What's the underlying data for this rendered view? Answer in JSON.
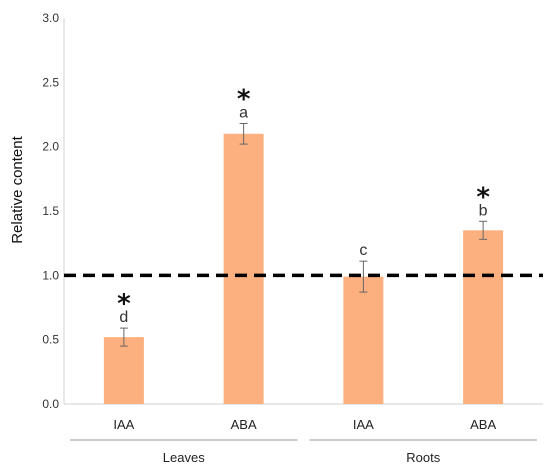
{
  "chart_data": {
    "type": "bar",
    "ylabel": "Relative content",
    "ylim": [
      0,
      3.0
    ],
    "yticks": [
      "0.0",
      "0.5",
      "1.0",
      "1.5",
      "2.0",
      "2.5",
      "3.0"
    ],
    "reference_line": 1.0,
    "bar_color": "#fdb07f",
    "bars": [
      {
        "category": "IAA",
        "group": "Leaves",
        "value": 0.52,
        "error": 0.07,
        "letter": "d",
        "star": "*"
      },
      {
        "category": "ABA",
        "group": "Leaves",
        "value": 2.1,
        "error": 0.08,
        "letter": "a",
        "star": "*"
      },
      {
        "category": "IAA",
        "group": "Roots",
        "value": 0.99,
        "error": 0.12,
        "letter": "c",
        "star": ""
      },
      {
        "category": "ABA",
        "group": "Roots",
        "value": 1.35,
        "error": 0.07,
        "letter": "b",
        "star": "*"
      }
    ],
    "groups": [
      {
        "name": "Leaves",
        "bar_indices": [
          0,
          1
        ]
      },
      {
        "name": "Roots",
        "bar_indices": [
          2,
          3
        ]
      }
    ]
  }
}
